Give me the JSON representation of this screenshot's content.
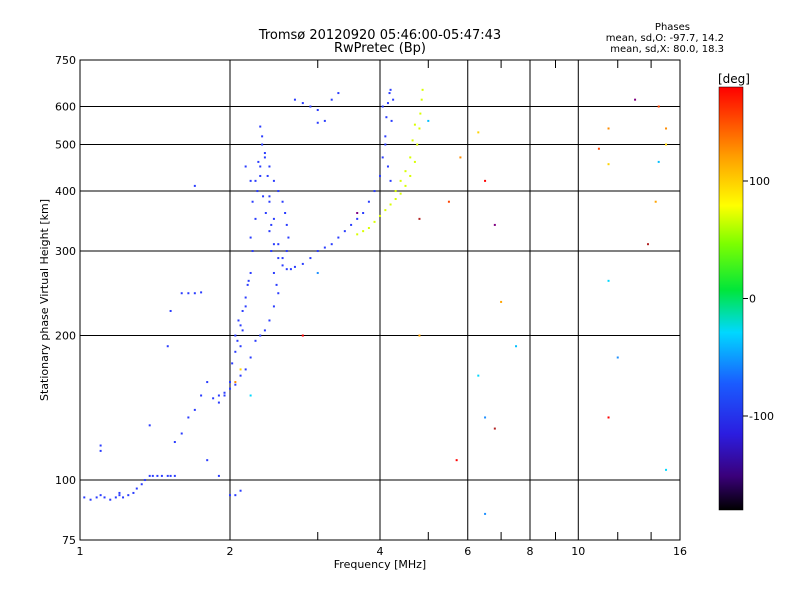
{
  "header": {
    "title_line1": "Tromsø 20120920 05:46:00-05:47:43",
    "title_line2": "RwPretec (Bp)"
  },
  "stats": {
    "header": "Phases",
    "o_line": "mean, sd,O: -97.7, 14.2",
    "x_line": "mean, sd,X:  80.0, 18.3"
  },
  "colorbar": {
    "unit": "[deg]",
    "range": [
      -180,
      180
    ],
    "ticks": [
      100,
      0,
      -100
    ],
    "tick_labels": [
      "100",
      "0",
      "-100"
    ]
  },
  "chart_data": {
    "type": "scatter",
    "title": "Tromsø 20120920 05:46:00-05:47:43",
    "subtitle": "RwPretec (Bp)",
    "xlabel": "Frequency [MHz]",
    "ylabel": "Stationary phase Virtual Height [km]",
    "x_scale": "log",
    "y_scale": "log",
    "xlim": [
      1,
      16
    ],
    "ylim": [
      75,
      750
    ],
    "x_ticks": [
      1,
      2,
      4,
      6,
      8,
      10,
      16
    ],
    "x_tick_labels": [
      "1",
      "2",
      "4",
      "6",
      "8",
      "10",
      "16"
    ],
    "x_minor_ticks": [
      3,
      5,
      7,
      9,
      12,
      14
    ],
    "y_ticks": [
      75,
      100,
      200,
      300,
      400,
      500,
      600,
      750
    ],
    "y_tick_labels": [
      "75",
      "100",
      "200",
      "300",
      "400",
      "500",
      "600",
      "750"
    ],
    "grid": true,
    "color_by": "phase [deg]",
    "series": [
      {
        "mode": "O",
        "phase_mean": -97.7,
        "points": [
          [
            1.02,
            92
          ],
          [
            1.05,
            91
          ],
          [
            1.08,
            92
          ],
          [
            1.1,
            93
          ],
          [
            1.12,
            92
          ],
          [
            1.15,
            91
          ],
          [
            1.18,
            92
          ],
          [
            1.2,
            93
          ],
          [
            1.22,
            92
          ],
          [
            1.25,
            93
          ],
          [
            1.28,
            94
          ],
          [
            1.3,
            96
          ],
          [
            1.33,
            98
          ],
          [
            1.35,
            100
          ],
          [
            1.38,
            102
          ],
          [
            1.4,
            102
          ],
          [
            1.43,
            102
          ],
          [
            1.46,
            102
          ],
          [
            1.5,
            102
          ],
          [
            1.52,
            102
          ],
          [
            1.55,
            102
          ],
          [
            1.1,
            115
          ],
          [
            1.38,
            130
          ],
          [
            1.55,
            120
          ],
          [
            1.6,
            125
          ],
          [
            1.65,
            135
          ],
          [
            1.7,
            140
          ],
          [
            1.75,
            150
          ],
          [
            1.8,
            160
          ],
          [
            1.5,
            190
          ],
          [
            1.52,
            225
          ],
          [
            1.6,
            245
          ],
          [
            1.65,
            245
          ],
          [
            1.7,
            245
          ],
          [
            1.75,
            246
          ],
          [
            1.85,
            148
          ],
          [
            1.9,
            145
          ],
          [
            1.95,
            150
          ],
          [
            2.0,
            160
          ],
          [
            2.02,
            175
          ],
          [
            2.05,
            185
          ],
          [
            2.07,
            195
          ],
          [
            2.1,
            210
          ],
          [
            2.12,
            225
          ],
          [
            2.15,
            240
          ],
          [
            2.17,
            255
          ],
          [
            2.2,
            270
          ],
          [
            2.22,
            300
          ],
          [
            2.25,
            350
          ],
          [
            2.27,
            400
          ],
          [
            2.3,
            450
          ],
          [
            2.32,
            500
          ],
          [
            2.35,
            470
          ],
          [
            2.38,
            430
          ],
          [
            2.4,
            380
          ],
          [
            2.42,
            340
          ],
          [
            2.45,
            310
          ],
          [
            2.5,
            290
          ],
          [
            2.55,
            280
          ],
          [
            2.6,
            275
          ],
          [
            2.65,
            275
          ],
          [
            2.7,
            278
          ],
          [
            2.8,
            282
          ],
          [
            2.9,
            290
          ],
          [
            3.0,
            300
          ],
          [
            3.1,
            305
          ],
          [
            3.2,
            310
          ],
          [
            3.3,
            320
          ],
          [
            3.4,
            330
          ],
          [
            3.5,
            340
          ],
          [
            3.6,
            350
          ],
          [
            3.7,
            360
          ],
          [
            3.8,
            380
          ],
          [
            3.9,
            400
          ],
          [
            4.0,
            430
          ],
          [
            4.05,
            470
          ],
          [
            4.1,
            520
          ],
          [
            4.12,
            570
          ],
          [
            4.15,
            610
          ],
          [
            4.18,
            640
          ],
          [
            4.2,
            650
          ],
          [
            2.05,
            200
          ],
          [
            2.08,
            215
          ],
          [
            2.1,
            190
          ],
          [
            2.12,
            205
          ],
          [
            2.15,
            230
          ],
          [
            2.18,
            260
          ],
          [
            2.2,
            320
          ],
          [
            2.22,
            380
          ],
          [
            2.25,
            420
          ],
          [
            2.28,
            460
          ],
          [
            2.3,
            430
          ],
          [
            2.33,
            390
          ],
          [
            2.36,
            360
          ],
          [
            2.4,
            330
          ],
          [
            2.42,
            300
          ],
          [
            2.45,
            270
          ],
          [
            2.48,
            255
          ],
          [
            2.5,
            245
          ],
          [
            2.45,
            230
          ],
          [
            2.4,
            215
          ],
          [
            2.35,
            205
          ],
          [
            2.3,
            200
          ],
          [
            2.25,
            195
          ],
          [
            2.2,
            180
          ],
          [
            2.15,
            170
          ],
          [
            2.1,
            165
          ],
          [
            2.05,
            158
          ],
          [
            2.0,
            155
          ],
          [
            1.95,
            152
          ],
          [
            1.9,
            150
          ],
          [
            2.3,
            545
          ],
          [
            2.32,
            520
          ],
          [
            2.35,
            480
          ],
          [
            2.4,
            450
          ],
          [
            2.45,
            420
          ],
          [
            2.5,
            400
          ],
          [
            2.55,
            380
          ],
          [
            2.58,
            360
          ],
          [
            2.6,
            340
          ],
          [
            2.62,
            320
          ],
          [
            2.6,
            300
          ],
          [
            2.55,
            290
          ],
          [
            2.5,
            310
          ],
          [
            2.45,
            350
          ],
          [
            2.4,
            390
          ],
          [
            2.7,
            620
          ],
          [
            2.8,
            610
          ],
          [
            2.9,
            600
          ],
          [
            3.0,
            590
          ],
          [
            3.2,
            620
          ],
          [
            3.3,
            640
          ],
          [
            3.1,
            560
          ],
          [
            3.0,
            555
          ],
          [
            1.7,
            410
          ],
          [
            1.1,
            118
          ],
          [
            1.2,
            94
          ],
          [
            1.8,
            110
          ],
          [
            1.9,
            102
          ],
          [
            2.0,
            93
          ],
          [
            2.05,
            93
          ],
          [
            2.1,
            95
          ],
          [
            2.2,
            420
          ],
          [
            2.15,
            450
          ],
          [
            4.05,
            600
          ],
          [
            4.1,
            500
          ],
          [
            4.15,
            450
          ],
          [
            4.2,
            420
          ],
          [
            4.22,
            560
          ],
          [
            4.25,
            620
          ]
        ]
      },
      {
        "mode": "X",
        "phase_mean": 80.0,
        "points": [
          [
            3.6,
            325
          ],
          [
            3.7,
            330
          ],
          [
            3.8,
            335
          ],
          [
            3.9,
            345
          ],
          [
            4.0,
            355
          ],
          [
            4.1,
            365
          ],
          [
            4.2,
            375
          ],
          [
            4.3,
            385
          ],
          [
            4.4,
            395
          ],
          [
            4.5,
            410
          ],
          [
            4.6,
            430
          ],
          [
            4.7,
            460
          ],
          [
            4.75,
            500
          ],
          [
            4.8,
            540
          ],
          [
            4.82,
            580
          ],
          [
            4.85,
            620
          ],
          [
            4.87,
            650
          ],
          [
            4.3,
            400
          ],
          [
            4.4,
            420
          ],
          [
            4.5,
            440
          ],
          [
            4.6,
            470
          ],
          [
            4.65,
            510
          ],
          [
            4.7,
            550
          ]
        ]
      },
      {
        "mode": "scatter",
        "phase_mean": null,
        "points": [
          [
            2.05,
            160
          ],
          [
            2.1,
            170
          ],
          [
            2.2,
            150
          ],
          [
            2.8,
            200
          ],
          [
            3.0,
            270
          ],
          [
            3.6,
            360
          ],
          [
            4.8,
            350
          ],
          [
            4.8,
            200
          ],
          [
            5.0,
            560
          ],
          [
            5.5,
            380
          ],
          [
            5.8,
            470
          ],
          [
            6.3,
            530
          ],
          [
            6.3,
            165
          ],
          [
            6.5,
            420
          ],
          [
            6.5,
            85
          ],
          [
            6.8,
            340
          ],
          [
            6.8,
            128
          ],
          [
            7.0,
            235
          ],
          [
            7.5,
            190
          ],
          [
            11.0,
            490
          ],
          [
            11.5,
            540
          ],
          [
            11.5,
            455
          ],
          [
            11.5,
            260
          ],
          [
            11.5,
            135
          ],
          [
            12.0,
            180
          ],
          [
            13.0,
            620
          ],
          [
            13.8,
            310
          ],
          [
            14.3,
            380
          ],
          [
            14.5,
            460
          ],
          [
            14.5,
            600
          ],
          [
            15.0,
            540
          ],
          [
            15.0,
            500
          ],
          [
            15.0,
            105
          ],
          [
            5.7,
            110
          ],
          [
            6.5,
            135
          ]
        ]
      }
    ]
  }
}
